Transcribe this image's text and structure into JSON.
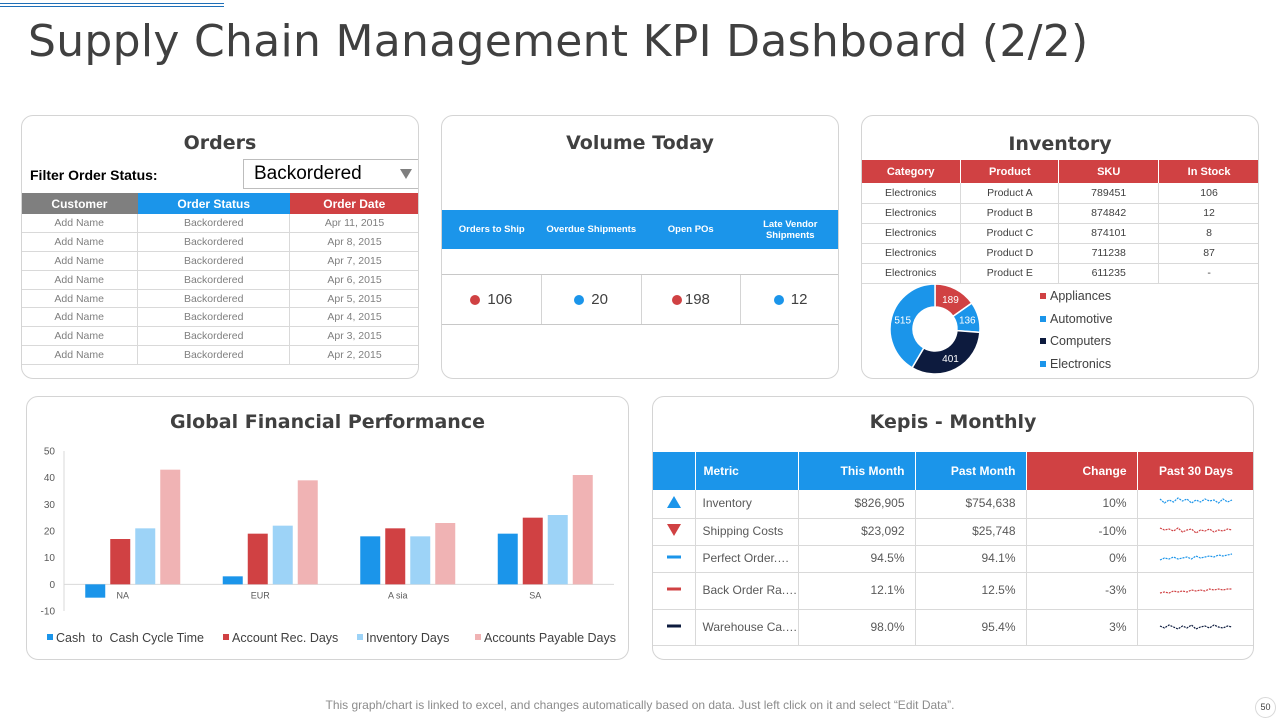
{
  "title": "Supply Chain Management KPI Dashboard (2/2)",
  "orders": {
    "title": "Orders",
    "filter_label": "Filter Order Status:",
    "filter_value": "Backordered",
    "columns": [
      "Customer",
      "Order Status",
      "Order Date"
    ],
    "rows": [
      [
        "Add Name",
        "Backordered",
        "Apr 11, 2015"
      ],
      [
        "Add Name",
        "Backordered",
        "Apr 8, 2015"
      ],
      [
        "Add Name",
        "Backordered",
        "Apr 7, 2015"
      ],
      [
        "Add Name",
        "Backordered",
        "Apr 6, 2015"
      ],
      [
        "Add Name",
        "Backordered",
        "Apr 5, 2015"
      ],
      [
        "Add Name",
        "Backordered",
        "Apr 4, 2015"
      ],
      [
        "Add Name",
        "Backordered",
        "Apr 3, 2015"
      ],
      [
        "Add Name",
        "Backordered",
        "Apr 2, 2015"
      ]
    ]
  },
  "volume": {
    "title": "Volume Today",
    "headers": [
      "Orders to Ship",
      "Overdue Shipments",
      "Open POs",
      "Late Vendor Shipments"
    ],
    "values": [
      "106",
      "20",
      "198",
      "12"
    ],
    "dot_colors": [
      "#d04143",
      "#1b95ea",
      "#d04143",
      "#1b95ea"
    ]
  },
  "inventory": {
    "title": "Inventory",
    "columns": [
      "Category",
      "Product",
      "SKU",
      "In Stock"
    ],
    "rows": [
      [
        "Electronics",
        "Product A",
        "789451",
        "106"
      ],
      [
        "Electronics",
        "Product B",
        "874842",
        "12"
      ],
      [
        "Electronics",
        "Product C",
        "874101",
        "8"
      ],
      [
        "Electronics",
        "Product D",
        "711238",
        "87"
      ],
      [
        "Electronics",
        "Product E",
        "611235",
        "-"
      ]
    ]
  },
  "colors": {
    "blue": "#1b95ea",
    "red": "#d04143",
    "navy": "#0d1b3e",
    "light_blue": "#9dd3f7",
    "pink": "#f0b3b4",
    "gray": "#7f7f7f"
  },
  "chart_data": [
    {
      "type": "pie",
      "title": "Inventory",
      "categories": [
        "Appliances",
        "Automotive",
        "Computers",
        "Electronics"
      ],
      "values": [
        189,
        136,
        401,
        515
      ],
      "labels": [
        "189",
        "136",
        "401",
        "515"
      ],
      "colors": [
        "#d04143",
        "#1b95ea",
        "#0d1b3e",
        "#1b95ea"
      ]
    },
    {
      "type": "bar",
      "title": "Global Financial Performance",
      "categories": [
        "NA",
        "EUR",
        "Asia",
        "SA"
      ],
      "category_labels": [
        "NA",
        "EUR",
        "A sia",
        "SA"
      ],
      "series": [
        {
          "name": "Cash  to  Cash Cycle Time",
          "values": [
            -5,
            3,
            18,
            19
          ],
          "color": "#1b95ea"
        },
        {
          "name": "Account Rec. Days",
          "values": [
            17,
            19,
            21,
            25
          ],
          "color": "#d04143"
        },
        {
          "name": "Inventory Days",
          "values": [
            21,
            22,
            18,
            26
          ],
          "color": "#9dd3f7"
        },
        {
          "name": "Accounts Payable Days",
          "values": [
            43,
            39,
            23,
            41
          ],
          "color": "#f0b3b4"
        }
      ],
      "ylim": [
        -10,
        50
      ],
      "yticks": [
        "-10",
        "0",
        "10",
        "20",
        "30",
        "40",
        "50"
      ],
      "xlabel": "",
      "ylabel": "",
      "legend": "bottom"
    }
  ],
  "kpis": {
    "title": "Kepis - Monthly",
    "columns": [
      "Metric",
      "This Month",
      "Past Month",
      "Change",
      "Past 30 Days"
    ],
    "rows": [
      {
        "icon": "up-triangle-icon",
        "metric": "Inventory",
        "this_month": "$826,905",
        "past_month": "$754,638",
        "change": "10%",
        "color": "#1b95ea"
      },
      {
        "icon": "down-triangle-icon",
        "metric": "Shipping Costs",
        "this_month": "$23,092",
        "past_month": "$25,748",
        "change": "-10%",
        "color": "#d04143"
      },
      {
        "icon": "dash-icon",
        "metric": "Perfect Order.…",
        "this_month": "94.5%",
        "past_month": "94.1%",
        "change": "0%",
        "color": "#1b95ea"
      },
      {
        "icon": "dash-icon",
        "metric": "Back Order Ra.…",
        "this_month": "12.1%",
        "past_month": "12.5%",
        "change": "-3%",
        "color": "#d04143"
      },
      {
        "icon": "dash-icon",
        "metric": "Warehouse Ca.…",
        "this_month": "98.0%",
        "past_month": "95.4%",
        "change": "3%",
        "color": "#0d1b3e"
      }
    ]
  },
  "footer": "This graph/chart is linked to excel, and changes automatically based on data. Just left click on it and select “Edit Data”.",
  "page_number": "50"
}
